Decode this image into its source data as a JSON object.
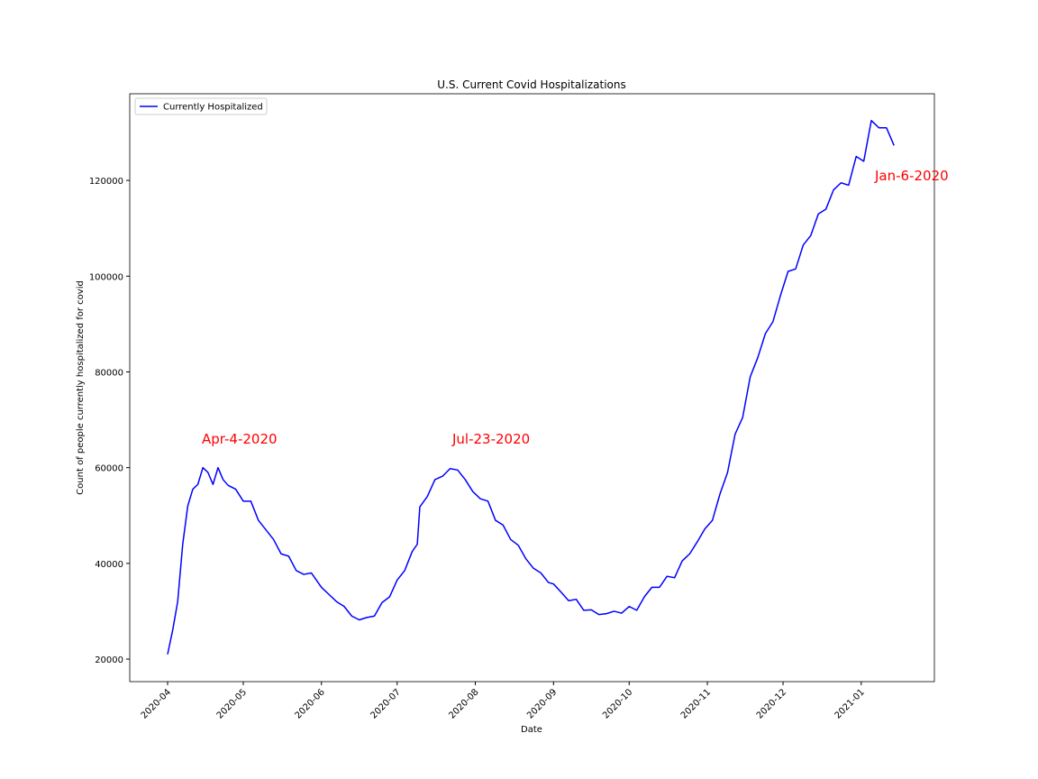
{
  "chart_data": {
    "type": "line",
    "title": "U.S. Current Covid Hospitalizations",
    "xlabel": "Date",
    "ylabel": "Count of people currently hospitalized for covid",
    "x": [
      "2020-04-01",
      "2020-04-03",
      "2020-04-05",
      "2020-04-07",
      "2020-04-09",
      "2020-04-11",
      "2020-04-13",
      "2020-04-15",
      "2020-04-17",
      "2020-04-19",
      "2020-04-21",
      "2020-04-23",
      "2020-04-25",
      "2020-04-28",
      "2020-05-01",
      "2020-05-04",
      "2020-05-07",
      "2020-05-10",
      "2020-05-13",
      "2020-05-16",
      "2020-05-19",
      "2020-05-22",
      "2020-05-25",
      "2020-05-28",
      "2020-06-01",
      "2020-06-04",
      "2020-06-07",
      "2020-06-10",
      "2020-06-13",
      "2020-06-16",
      "2020-06-19",
      "2020-06-22",
      "2020-06-25",
      "2020-06-28",
      "2020-07-01",
      "2020-07-04",
      "2020-07-07",
      "2020-07-09",
      "2020-07-10",
      "2020-07-13",
      "2020-07-16",
      "2020-07-19",
      "2020-07-22",
      "2020-07-25",
      "2020-07-28",
      "2020-07-31",
      "2020-08-03",
      "2020-08-06",
      "2020-08-09",
      "2020-08-12",
      "2020-08-15",
      "2020-08-18",
      "2020-08-21",
      "2020-08-24",
      "2020-08-27",
      "2020-08-30",
      "2020-09-01",
      "2020-09-04",
      "2020-09-07",
      "2020-09-10",
      "2020-09-13",
      "2020-09-16",
      "2020-09-19",
      "2020-09-22",
      "2020-09-25",
      "2020-09-28",
      "2020-10-01",
      "2020-10-04",
      "2020-10-07",
      "2020-10-10",
      "2020-10-13",
      "2020-10-16",
      "2020-10-19",
      "2020-10-22",
      "2020-10-25",
      "2020-10-28",
      "2020-10-31",
      "2020-11-03",
      "2020-11-06",
      "2020-11-09",
      "2020-11-12",
      "2020-11-15",
      "2020-11-18",
      "2020-11-21",
      "2020-11-24",
      "2020-11-27",
      "2020-11-30",
      "2020-12-03",
      "2020-12-06",
      "2020-12-09",
      "2020-12-12",
      "2020-12-15",
      "2020-12-18",
      "2020-12-21",
      "2020-12-24",
      "2020-12-27",
      "2020-12-30",
      "2021-01-02",
      "2021-01-05",
      "2021-01-08",
      "2021-01-11",
      "2021-01-14"
    ],
    "series": [
      {
        "name": "Currently Hospitalized",
        "color": "#0000ff",
        "values": [
          21000,
          26000,
          32000,
          44000,
          52000,
          55500,
          56500,
          60000,
          59000,
          56500,
          60000,
          57500,
          56300,
          55500,
          53000,
          53000,
          49000,
          47000,
          45000,
          42000,
          41500,
          38500,
          37700,
          38000,
          35000,
          33500,
          32000,
          31000,
          29000,
          28200,
          28700,
          29000,
          31800,
          33000,
          36500,
          38500,
          42500,
          44000,
          51800,
          54000,
          57500,
          58200,
          59800,
          59500,
          57500,
          55000,
          53500,
          53000,
          49000,
          48000,
          45000,
          43800,
          41000,
          39000,
          38000,
          36000,
          35700,
          34000,
          32200,
          32500,
          30200,
          30300,
          29300,
          29500,
          30000,
          29600,
          31000,
          30200,
          33000,
          35000,
          35000,
          37300,
          37000,
          40500,
          42000,
          44500,
          47200,
          49000,
          54500,
          59000,
          67000,
          70500,
          79000,
          83000,
          88000,
          90500,
          96000,
          101000,
          101500,
          106500,
          108500,
          113000,
          114000,
          118000,
          119500,
          119000,
          125000,
          124000,
          132500,
          131000,
          131000,
          127300
        ]
      }
    ],
    "xlim": [
      "2020-03-17",
      "2021-01-30"
    ],
    "xticks": [
      {
        "value": "2020-04-01",
        "label": "2020-04"
      },
      {
        "value": "2020-05-01",
        "label": "2020-05"
      },
      {
        "value": "2020-06-01",
        "label": "2020-06"
      },
      {
        "value": "2020-07-01",
        "label": "2020-07"
      },
      {
        "value": "2020-08-01",
        "label": "2020-08"
      },
      {
        "value": "2020-09-01",
        "label": "2020-09"
      },
      {
        "value": "2020-10-01",
        "label": "2020-10"
      },
      {
        "value": "2020-11-01",
        "label": "2020-11"
      },
      {
        "value": "2020-12-01",
        "label": "2020-12"
      },
      {
        "value": "2021-01-01",
        "label": "2021-01"
      }
    ],
    "ylim": [
      15300,
      138100
    ],
    "yticks": [
      20000,
      40000,
      60000,
      80000,
      100000,
      120000
    ],
    "grid": false,
    "legend": "upper left",
    "annotations": [
      {
        "text": "Apr-4-2020",
        "color": "#ff0000"
      },
      {
        "text": "Jul-23-2020",
        "color": "#ff0000"
      },
      {
        "text": "Jan-6-2020",
        "color": "#ff0000"
      }
    ]
  }
}
